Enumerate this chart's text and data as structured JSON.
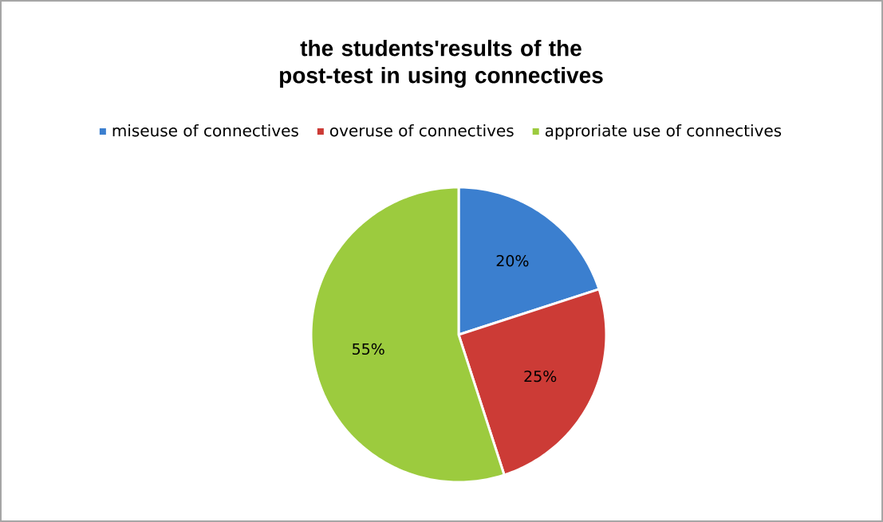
{
  "chart_data": {
    "type": "pie",
    "title": "the students'results of the post-test in using connectives",
    "categories": [
      "miseuse of connectives",
      "overuse of connectives",
      "approriate use of connectives"
    ],
    "values": [
      20,
      25,
      55
    ],
    "value_labels": [
      "20%",
      "25%",
      "55%"
    ],
    "colors": [
      "#3b7fcf",
      "#cc3b36",
      "#9ccb3e"
    ],
    "legend": "top"
  }
}
